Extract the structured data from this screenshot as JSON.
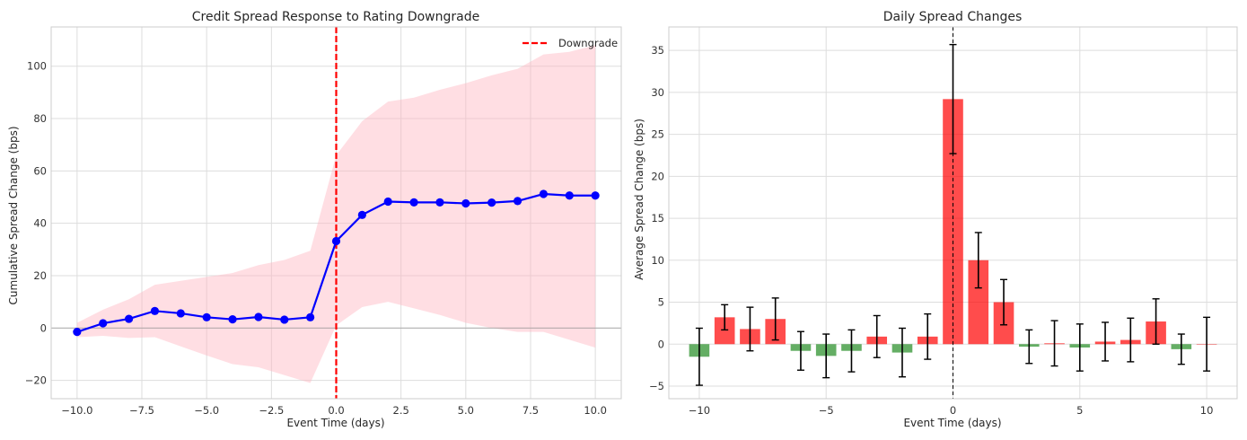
{
  "chart_data": [
    {
      "type": "line",
      "title": "Credit Spread Response to Rating Downgrade",
      "xlabel": "Event Time (days)",
      "ylabel": "Cumulative Spread Change (bps)",
      "xlim": [
        -11,
        11
      ],
      "ylim": [
        -27,
        115
      ],
      "xticks": [
        -10,
        -7.5,
        -5,
        -2.5,
        0,
        2.5,
        5,
        7.5,
        10
      ],
      "xtick_labels": [
        "−10.0",
        "−7.5",
        "−5.0",
        "−2.5",
        "0.0",
        "2.5",
        "5.0",
        "7.5",
        "10.0"
      ],
      "yticks": [
        -20,
        0,
        20,
        40,
        60,
        80,
        100
      ],
      "ytick_labels": [
        "−20",
        "0",
        "20",
        "40",
        "60",
        "80",
        "100"
      ],
      "x": [
        -10,
        -9,
        -8,
        -7,
        -6,
        -5,
        -4,
        -3,
        -2,
        -1,
        0,
        1,
        2,
        3,
        4,
        5,
        6,
        7,
        8,
        9,
        10
      ],
      "series": [
        {
          "name": "Cumulative spread change",
          "color": "#0000ff",
          "values": [
            -1.5,
            1.8,
            3.5,
            6.5,
            5.6,
            4.1,
            3.3,
            4.2,
            3.2,
            4.1,
            33.2,
            43.2,
            48.3,
            48.0,
            48.0,
            47.6,
            47.9,
            48.5,
            51.2,
            50.6,
            50.6
          ]
        }
      ],
      "band": {
        "color": "#ffb6c1",
        "lower": [
          -3.5,
          -3.0,
          -3.8,
          -3.5,
          -7.0,
          -10.5,
          -13.8,
          -15.0,
          -18.0,
          -21.0,
          1.0,
          8.0,
          10.0,
          7.5,
          5.0,
          2.0,
          0.0,
          -1.5,
          -1.5,
          -4.5,
          -7.5
        ],
        "upper": [
          2.0,
          7.0,
          11.0,
          16.5,
          18.0,
          19.5,
          21.0,
          24.0,
          26.0,
          29.5,
          66.0,
          79.0,
          86.5,
          88.0,
          91.0,
          93.5,
          96.5,
          99.0,
          104.5,
          105.5,
          108.0
        ]
      },
      "vline": {
        "x": 0,
        "label": "Downgrade",
        "color": "#ff0000"
      },
      "hline": {
        "y": 0
      },
      "legend": {
        "position": "top-right",
        "entries": [
          "Downgrade"
        ]
      },
      "grid": true
    },
    {
      "type": "bar",
      "title": "Daily Spread Changes",
      "xlabel": "Event Time (days)",
      "ylabel": "Average Spread Change (bps)",
      "xlim": [
        -11.2,
        11.2
      ],
      "ylim": [
        -6.5,
        37.8
      ],
      "xticks": [
        -10,
        -5,
        0,
        5,
        10
      ],
      "xtick_labels": [
        "−10",
        "−5",
        "0",
        "5",
        "10"
      ],
      "yticks": [
        -5,
        0,
        5,
        10,
        15,
        20,
        25,
        30,
        35
      ],
      "ytick_labels": [
        "−5",
        "0",
        "5",
        "10",
        "15",
        "20",
        "25",
        "30",
        "35"
      ],
      "x": [
        -10,
        -9,
        -8,
        -7,
        -6,
        -5,
        -4,
        -3,
        -2,
        -1,
        0,
        1,
        2,
        3,
        4,
        5,
        6,
        7,
        8,
        9,
        10
      ],
      "values": [
        -1.5,
        3.2,
        1.8,
        3.0,
        -0.8,
        -1.4,
        -0.8,
        0.9,
        -1.0,
        0.9,
        29.2,
        10.0,
        5.0,
        -0.3,
        0.1,
        -0.4,
        0.3,
        0.5,
        2.7,
        -0.6,
        0.0
      ],
      "errors": [
        3.4,
        1.5,
        2.6,
        2.5,
        2.3,
        2.6,
        2.5,
        2.5,
        2.9,
        2.7,
        6.5,
        3.3,
        2.7,
        2.0,
        2.7,
        2.8,
        2.3,
        2.6,
        2.7,
        1.8,
        3.2
      ],
      "positive_color": "#ff0000",
      "negative_color": "#228b22",
      "vline": {
        "x": 0,
        "style": "dashed",
        "color": "#000000"
      },
      "grid": true
    }
  ]
}
